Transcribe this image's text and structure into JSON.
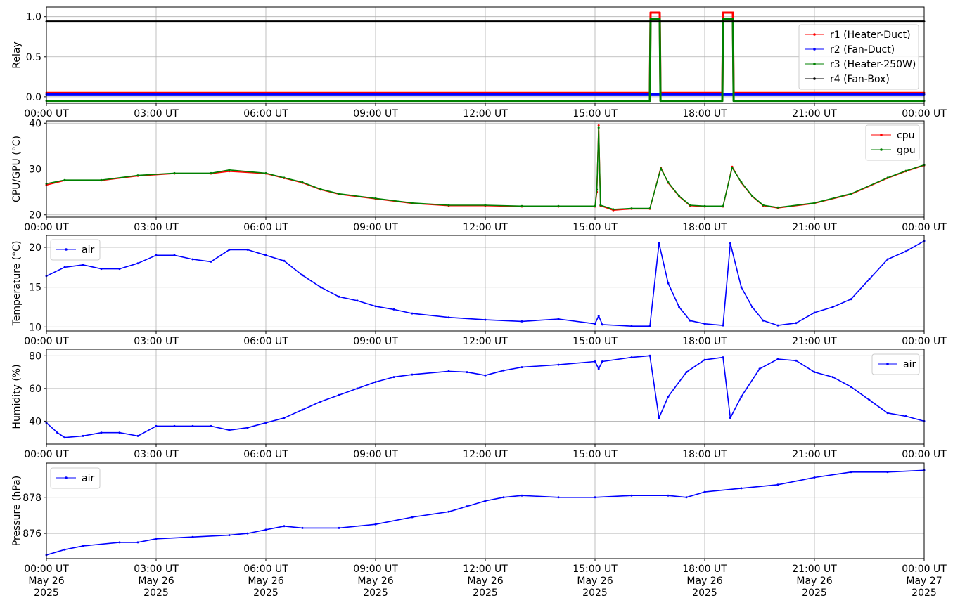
{
  "chart_data": [
    {
      "type": "line",
      "ylabel": "Relay",
      "xlim_hours": [
        0,
        24
      ],
      "ylim": [
        -0.08,
        1.12
      ],
      "yticks": [
        0.0,
        0.5,
        1.0
      ],
      "ytick_labels": [
        "0.0",
        "0.5",
        "1.0"
      ],
      "grid": true,
      "legend": "right",
      "series": [
        {
          "name": "r1 (Heater-Duct)",
          "color": "#ff0000",
          "points": [
            [
              0,
              0.05
            ],
            [
              16.5,
              0.05
            ],
            [
              16.52,
              1.05
            ],
            [
              16.77,
              1.05
            ],
            [
              16.79,
              0.05
            ],
            [
              18.48,
              0.05
            ],
            [
              18.5,
              1.05
            ],
            [
              18.77,
              1.05
            ],
            [
              18.79,
              0.05
            ],
            [
              24,
              0.05
            ]
          ]
        },
        {
          "name": "r2 (Fan-Duct)",
          "color": "#0000ff",
          "points": [
            [
              0,
              0.03
            ],
            [
              24,
              0.03
            ]
          ]
        },
        {
          "name": "r3 (Heater-250W)",
          "color": "#008000",
          "points": [
            [
              0,
              -0.05
            ],
            [
              16.5,
              -0.05
            ],
            [
              16.52,
              0.97
            ],
            [
              16.77,
              0.97
            ],
            [
              16.79,
              -0.05
            ],
            [
              18.48,
              -0.05
            ],
            [
              18.5,
              0.97
            ],
            [
              18.77,
              0.97
            ],
            [
              18.79,
              -0.05
            ],
            [
              24,
              -0.05
            ]
          ]
        },
        {
          "name": "r4 (Fan-Box)",
          "color": "#000000",
          "points": [
            [
              0,
              0.94
            ],
            [
              24,
              0.94
            ]
          ]
        }
      ]
    },
    {
      "type": "line",
      "ylabel": "CPU/GPU (°C)",
      "xlim_hours": [
        0,
        24
      ],
      "ylim": [
        19.5,
        40.5
      ],
      "yticks": [
        20,
        30,
        40
      ],
      "ytick_labels": [
        "20",
        "30",
        "40"
      ],
      "grid": true,
      "legend": "upper right",
      "series": [
        {
          "name": "cpu",
          "color": "#ff0000",
          "points": [
            [
              0,
              26.5
            ],
            [
              0.5,
              27.5
            ],
            [
              1.5,
              27.5
            ],
            [
              2.5,
              28.5
            ],
            [
              3.5,
              29
            ],
            [
              4.5,
              29
            ],
            [
              5.0,
              29.5
            ],
            [
              6.0,
              29
            ],
            [
              6.5,
              28
            ],
            [
              7.0,
              27
            ],
            [
              7.5,
              25.5
            ],
            [
              8.0,
              24.5
            ],
            [
              9.0,
              23.5
            ],
            [
              10.0,
              22.5
            ],
            [
              11.0,
              22
            ],
            [
              12.0,
              22
            ],
            [
              13.0,
              21.8
            ],
            [
              14.0,
              21.8
            ],
            [
              15.0,
              21.8
            ],
            [
              15.05,
              25
            ],
            [
              15.1,
              39.5
            ],
            [
              15.15,
              22
            ],
            [
              15.5,
              21
            ],
            [
              16.0,
              21.3
            ],
            [
              16.5,
              21.3
            ],
            [
              16.8,
              30.3
            ],
            [
              17.0,
              27
            ],
            [
              17.3,
              24
            ],
            [
              17.6,
              22
            ],
            [
              18.0,
              21.8
            ],
            [
              18.5,
              21.8
            ],
            [
              18.75,
              30.5
            ],
            [
              19.0,
              27
            ],
            [
              19.3,
              24
            ],
            [
              19.6,
              22
            ],
            [
              20.0,
              21.5
            ],
            [
              21.0,
              22.5
            ],
            [
              22.0,
              24.5
            ],
            [
              23.0,
              28
            ],
            [
              23.5,
              29.5
            ],
            [
              24.0,
              30.8
            ]
          ]
        },
        {
          "name": "gpu",
          "color": "#008000",
          "points": [
            [
              0,
              26.8
            ],
            [
              0.5,
              27.6
            ],
            [
              1.5,
              27.6
            ],
            [
              2.5,
              28.6
            ],
            [
              3.5,
              29.1
            ],
            [
              4.5,
              29.1
            ],
            [
              5.0,
              29.8
            ],
            [
              6.0,
              29.1
            ],
            [
              6.5,
              28.1
            ],
            [
              7.0,
              27.1
            ],
            [
              7.5,
              25.6
            ],
            [
              8.0,
              24.6
            ],
            [
              9.0,
              23.6
            ],
            [
              10.0,
              22.6
            ],
            [
              11.0,
              22.1
            ],
            [
              12.0,
              22.1
            ],
            [
              13.0,
              21.9
            ],
            [
              14.0,
              21.9
            ],
            [
              15.0,
              21.9
            ],
            [
              15.05,
              25.5
            ],
            [
              15.1,
              39.0
            ],
            [
              15.15,
              22.1
            ],
            [
              15.5,
              21.2
            ],
            [
              16.0,
              21.4
            ],
            [
              16.5,
              21.4
            ],
            [
              16.8,
              30.1
            ],
            [
              17.0,
              27.1
            ],
            [
              17.3,
              24.1
            ],
            [
              17.6,
              22.1
            ],
            [
              18.0,
              21.9
            ],
            [
              18.5,
              21.9
            ],
            [
              18.75,
              30.3
            ],
            [
              19.0,
              27.1
            ],
            [
              19.3,
              24.1
            ],
            [
              19.6,
              22.1
            ],
            [
              20.0,
              21.6
            ],
            [
              21.0,
              22.6
            ],
            [
              22.0,
              24.6
            ],
            [
              23.0,
              28.1
            ],
            [
              23.5,
              29.6
            ],
            [
              24.0,
              30.9
            ]
          ]
        }
      ]
    },
    {
      "type": "line",
      "ylabel": "Temperature (°C)",
      "xlim_hours": [
        0,
        24
      ],
      "ylim": [
        9.5,
        21.5
      ],
      "yticks": [
        10,
        15,
        20
      ],
      "ytick_labels": [
        "10",
        "15",
        "20"
      ],
      "grid": true,
      "legend": "upper left",
      "series": [
        {
          "name": "air",
          "color": "#0000ff",
          "points": [
            [
              0,
              16.4
            ],
            [
              0.5,
              17.5
            ],
            [
              1.0,
              17.8
            ],
            [
              1.5,
              17.3
            ],
            [
              2.0,
              17.3
            ],
            [
              2.5,
              18.0
            ],
            [
              3.0,
              19.0
            ],
            [
              3.5,
              19.0
            ],
            [
              4.0,
              18.5
            ],
            [
              4.5,
              18.2
            ],
            [
              5.0,
              19.7
            ],
            [
              5.5,
              19.7
            ],
            [
              6.0,
              19.0
            ],
            [
              6.5,
              18.3
            ],
            [
              7.0,
              16.5
            ],
            [
              7.5,
              15.0
            ],
            [
              8.0,
              13.8
            ],
            [
              8.5,
              13.3
            ],
            [
              9.0,
              12.6
            ],
            [
              9.5,
              12.2
            ],
            [
              10.0,
              11.7
            ],
            [
              11.0,
              11.2
            ],
            [
              12.0,
              10.9
            ],
            [
              13.0,
              10.7
            ],
            [
              14.0,
              11.0
            ],
            [
              15.0,
              10.4
            ],
            [
              15.1,
              11.4
            ],
            [
              15.2,
              10.3
            ],
            [
              16.0,
              10.1
            ],
            [
              16.5,
              10.1
            ],
            [
              16.75,
              20.5
            ],
            [
              17.0,
              15.5
            ],
            [
              17.3,
              12.5
            ],
            [
              17.6,
              10.8
            ],
            [
              18.0,
              10.4
            ],
            [
              18.5,
              10.2
            ],
            [
              18.7,
              20.5
            ],
            [
              19.0,
              15.0
            ],
            [
              19.3,
              12.5
            ],
            [
              19.6,
              10.8
            ],
            [
              20.0,
              10.2
            ],
            [
              20.5,
              10.5
            ],
            [
              21.0,
              11.8
            ],
            [
              21.5,
              12.5
            ],
            [
              22.0,
              13.5
            ],
            [
              22.5,
              16.0
            ],
            [
              23.0,
              18.5
            ],
            [
              23.5,
              19.5
            ],
            [
              24.0,
              20.8
            ]
          ]
        }
      ]
    },
    {
      "type": "line",
      "ylabel": "Humidity (%)",
      "xlim_hours": [
        0,
        24
      ],
      "ylim": [
        26,
        84
      ],
      "yticks": [
        40,
        60,
        80
      ],
      "ytick_labels": [
        "40",
        "60",
        "80"
      ],
      "grid": true,
      "legend": "upper right",
      "series": [
        {
          "name": "air",
          "color": "#0000ff",
          "points": [
            [
              0,
              39
            ],
            [
              0.3,
              33
            ],
            [
              0.5,
              30
            ],
            [
              1.0,
              31
            ],
            [
              1.5,
              33
            ],
            [
              2.0,
              33
            ],
            [
              2.5,
              31
            ],
            [
              3.0,
              37
            ],
            [
              3.5,
              37
            ],
            [
              4.0,
              37
            ],
            [
              4.5,
              37
            ],
            [
              5.0,
              34.5
            ],
            [
              5.5,
              36
            ],
            [
              6.0,
              39
            ],
            [
              6.5,
              42
            ],
            [
              7.0,
              47
            ],
            [
              7.5,
              52
            ],
            [
              8.0,
              56
            ],
            [
              8.5,
              60
            ],
            [
              9.0,
              64
            ],
            [
              9.5,
              67
            ],
            [
              10.0,
              68.5
            ],
            [
              11.0,
              70.5
            ],
            [
              11.5,
              70
            ],
            [
              12.0,
              68
            ],
            [
              12.5,
              71
            ],
            [
              13.0,
              73
            ],
            [
              14.0,
              74.5
            ],
            [
              15.0,
              76.5
            ],
            [
              15.1,
              72
            ],
            [
              15.2,
              76.5
            ],
            [
              16.0,
              79
            ],
            [
              16.5,
              80
            ],
            [
              16.75,
              42
            ],
            [
              17.0,
              55
            ],
            [
              17.5,
              70
            ],
            [
              18.0,
              77.5
            ],
            [
              18.5,
              79
            ],
            [
              18.7,
              42
            ],
            [
              19.0,
              55
            ],
            [
              19.5,
              72
            ],
            [
              20.0,
              78
            ],
            [
              20.5,
              77
            ],
            [
              21.0,
              70
            ],
            [
              21.5,
              67
            ],
            [
              22.0,
              61
            ],
            [
              22.5,
              53
            ],
            [
              23.0,
              45
            ],
            [
              23.5,
              43
            ],
            [
              24.0,
              40
            ]
          ]
        }
      ]
    },
    {
      "type": "line",
      "ylabel": "Pressure (hPa)",
      "xlim_hours": [
        0,
        24
      ],
      "ylim": [
        874.6,
        879.9
      ],
      "yticks": [
        876,
        878
      ],
      "ytick_labels": [
        "876",
        "878"
      ],
      "grid": true,
      "legend": "upper left",
      "series": [
        {
          "name": "air",
          "color": "#0000ff",
          "points": [
            [
              0,
              874.8
            ],
            [
              0.5,
              875.1
            ],
            [
              1.0,
              875.3
            ],
            [
              2.0,
              875.5
            ],
            [
              2.5,
              875.5
            ],
            [
              3.0,
              875.7
            ],
            [
              4.0,
              875.8
            ],
            [
              5.0,
              875.9
            ],
            [
              5.5,
              876.0
            ],
            [
              6.0,
              876.2
            ],
            [
              6.5,
              876.4
            ],
            [
              7.0,
              876.3
            ],
            [
              8.0,
              876.3
            ],
            [
              9.0,
              876.5
            ],
            [
              10.0,
              876.9
            ],
            [
              11.0,
              877.2
            ],
            [
              11.5,
              877.5
            ],
            [
              12.0,
              877.8
            ],
            [
              12.5,
              878.0
            ],
            [
              13.0,
              878.1
            ],
            [
              14.0,
              878.0
            ],
            [
              15.0,
              878.0
            ],
            [
              16.0,
              878.1
            ],
            [
              17.0,
              878.1
            ],
            [
              17.5,
              878.0
            ],
            [
              18.0,
              878.3
            ],
            [
              19.0,
              878.5
            ],
            [
              20.0,
              878.7
            ],
            [
              21.0,
              879.1
            ],
            [
              22.0,
              879.4
            ],
            [
              23.0,
              879.4
            ],
            [
              24.0,
              879.5
            ]
          ]
        }
      ]
    }
  ],
  "x_axis": {
    "ticks_hours": [
      0,
      3,
      6,
      9,
      12,
      15,
      18,
      21,
      24
    ],
    "time_labels": [
      "00:00 UT",
      "03:00 UT",
      "06:00 UT",
      "09:00 UT",
      "12:00 UT",
      "15:00 UT",
      "18:00 UT",
      "21:00 UT",
      "00:00 UT"
    ],
    "date_labels": [
      "May 26",
      "May 26",
      "May 26",
      "May 26",
      "May 26",
      "May 26",
      "May 26",
      "May 26",
      "May 27"
    ],
    "year_labels": [
      "2025",
      "2025",
      "2025",
      "2025",
      "2025",
      "2025",
      "2025",
      "2025",
      "2025"
    ]
  }
}
